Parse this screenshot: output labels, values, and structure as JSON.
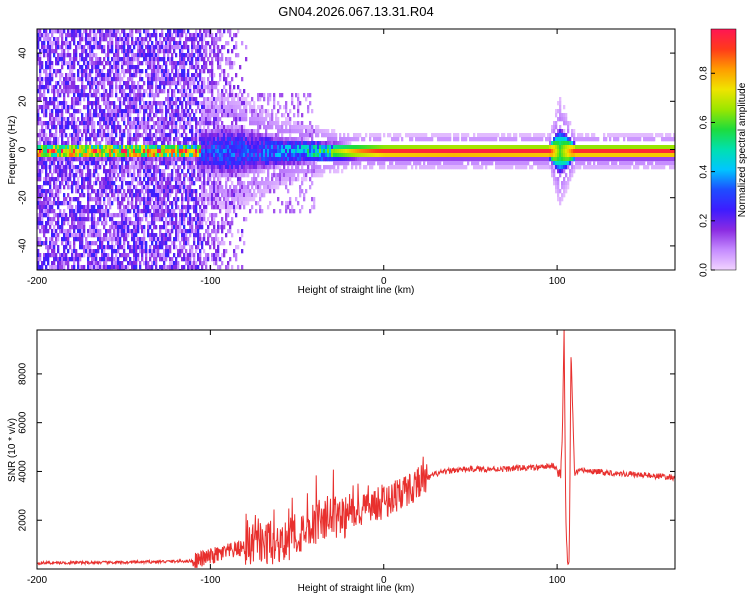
{
  "title": "GN04.2026.067.13.31.R04",
  "chart_data": [
    {
      "type": "heatmap",
      "xlabel": "Height of straight line (km)",
      "ylabel": "Frequency (Hz)",
      "xlim": [
        -200,
        168
      ],
      "ylim": [
        -50,
        50
      ],
      "xticks": [
        -200,
        -100,
        0,
        100
      ],
      "xtick_labels": [
        "-200",
        "-100",
        "0",
        "100"
      ],
      "yticks": [
        -40,
        -20,
        0,
        20,
        40
      ],
      "ytick_labels": [
        "-40",
        "-20",
        "0",
        "20",
        "40"
      ],
      "colorbar": {
        "label": "Normalized spectral amplitude",
        "range": [
          0.0,
          0.98
        ],
        "ticks": [
          0.0,
          0.2,
          0.4,
          0.6,
          0.8
        ],
        "tick_labels": [
          "0.0",
          "0.2",
          "0.4",
          "0.6",
          "0.8"
        ],
        "colors": [
          "#f2d4ff",
          "#c58bff",
          "#8a2be2",
          "#3d1cff",
          "#1e4dff",
          "#00c6ff",
          "#00e0b0",
          "#1edc3c",
          "#9be600",
          "#f0e400",
          "#ff9c00",
          "#ff3a1a",
          "#ff1654"
        ]
      },
      "band_profile": [
        {
          "x": -106,
          "halfwidth": 7,
          "level": 0.32
        },
        {
          "x": -90,
          "halfwidth": 9,
          "level": 0.35
        },
        {
          "x": -75,
          "halfwidth": 7,
          "level": 0.33
        },
        {
          "x": -60,
          "halfwidth": 5,
          "level": 0.4
        },
        {
          "x": -45,
          "halfwidth": 4,
          "level": 0.5
        },
        {
          "x": -30,
          "halfwidth": 3,
          "level": 0.65
        },
        {
          "x": -15,
          "halfwidth": 2.5,
          "level": 0.85
        },
        {
          "x": 0,
          "halfwidth": 2.5,
          "level": 0.95
        },
        {
          "x": 40,
          "halfwidth": 2.5,
          "level": 0.98
        },
        {
          "x": 95,
          "halfwidth": 2.5,
          "level": 0.96
        },
        {
          "x": 101,
          "halfwidth": 8,
          "level": 0.6
        },
        {
          "x": 110,
          "halfwidth": 2.5,
          "level": 0.95
        },
        {
          "x": 168,
          "halfwidth": 2.5,
          "level": 0.96
        }
      ]
    },
    {
      "type": "line",
      "xlabel": "Height of straight line (km)",
      "ylabel": "SNR (10 * v/v)",
      "xlim": [
        -200,
        168
      ],
      "ylim": [
        0,
        9800
      ],
      "xticks": [
        -200,
        -100,
        0,
        100
      ],
      "xtick_labels": [
        "-200",
        "-100",
        "0",
        "100"
      ],
      "yticks": [
        2000,
        4000,
        6000,
        8000
      ],
      "ytick_labels": [
        "2000",
        "4000",
        "6000",
        "8000"
      ],
      "line_color": "#e8302e",
      "series": [
        {
          "x": [
            -200,
            -150,
            -110,
            -100,
            -90,
            -80,
            -70,
            -60,
            -50,
            -45,
            -40,
            -35,
            -30,
            -25,
            -20,
            -15,
            -10,
            -5,
            0,
            5,
            10,
            15,
            20,
            25,
            30,
            40,
            50,
            60,
            70,
            80,
            90,
            98,
            100,
            102,
            103,
            104,
            105,
            106,
            107,
            108,
            110,
            115,
            120,
            130,
            140,
            150,
            160,
            168
          ],
          "y": [
            250,
            270,
            330,
            500,
            700,
            900,
            1000,
            1100,
            1300,
            1700,
            1900,
            2050,
            2150,
            2150,
            2150,
            2250,
            2400,
            2600,
            2750,
            2950,
            3100,
            3300,
            3550,
            3700,
            3900,
            4050,
            4100,
            4100,
            4100,
            4150,
            4150,
            4250,
            4100,
            3800,
            5500,
            9800,
            2000,
            300,
            300,
            9000,
            3900,
            4050,
            4000,
            3950,
            3900,
            3850,
            3800,
            3750
          ]
        }
      ]
    }
  ]
}
